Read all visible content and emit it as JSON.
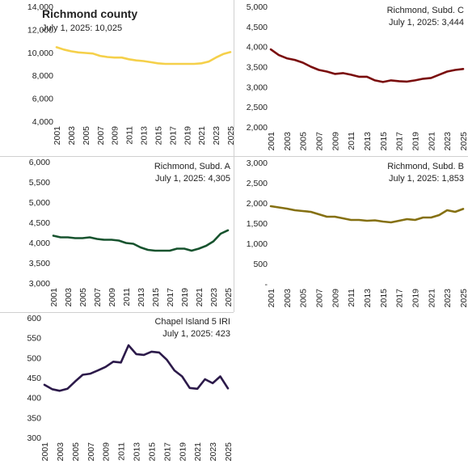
{
  "chart_data": [
    {
      "type": "line",
      "title": "Richmond county",
      "subtitle": "July 1, 2025: 10,025",
      "color": "#f5d04a",
      "ylim": [
        4000,
        14000
      ],
      "yticks": [
        "4,000",
        "6,000",
        "8,000",
        "10,000",
        "12,000",
        "14,000"
      ],
      "xticks": [
        "2001",
        "2003",
        "2005",
        "2007",
        "2009",
        "2011",
        "2013",
        "2015",
        "2017",
        "2019",
        "2021",
        "2023",
        "2025"
      ],
      "x": [
        2001,
        2002,
        2003,
        2004,
        2005,
        2006,
        2007,
        2008,
        2009,
        2010,
        2011,
        2012,
        2013,
        2014,
        2015,
        2016,
        2017,
        2018,
        2019,
        2020,
        2021,
        2022,
        2023,
        2024,
        2025
      ],
      "values": [
        10450,
        10250,
        10100,
        10000,
        9950,
        9900,
        9700,
        9600,
        9550,
        9550,
        9400,
        9300,
        9250,
        9150,
        9050,
        9000,
        9000,
        9000,
        9000,
        9000,
        9050,
        9200,
        9550,
        9850,
        10025
      ]
    },
    {
      "type": "line",
      "title": "Richmond, Subd. C",
      "subtitle": "July 1, 2025: 3,444",
      "color": "#7a0c0c",
      "ylim": [
        2000,
        5000
      ],
      "yticks": [
        "2,000",
        "2,500",
        "3,000",
        "3,500",
        "4,000",
        "4,500",
        "5,000"
      ],
      "xticks": [
        "2001",
        "2003",
        "2005",
        "2007",
        "2009",
        "2011",
        "2013",
        "2015",
        "2017",
        "2019",
        "2021",
        "2023",
        "2025"
      ],
      "x": [
        2001,
        2002,
        2003,
        2004,
        2005,
        2006,
        2007,
        2008,
        2009,
        2010,
        2011,
        2012,
        2013,
        2014,
        2015,
        2016,
        2017,
        2018,
        2019,
        2020,
        2021,
        2022,
        2023,
        2024,
        2025
      ],
      "values": [
        3930,
        3790,
        3710,
        3670,
        3600,
        3500,
        3420,
        3380,
        3320,
        3340,
        3300,
        3250,
        3250,
        3160,
        3120,
        3160,
        3140,
        3130,
        3160,
        3200,
        3220,
        3300,
        3380,
        3420,
        3444
      ]
    },
    {
      "type": "line",
      "title": "Richmond, Subd. A",
      "subtitle": "July 1, 2025: 4,305",
      "color": "#17532e",
      "ylim": [
        3000,
        6000
      ],
      "yticks": [
        "3,000",
        "3,500",
        "4,000",
        "4,500",
        "5,000",
        "5,500",
        "6,000"
      ],
      "xticks": [
        "2001",
        "2003",
        "2005",
        "2007",
        "2009",
        "2011",
        "2013",
        "2015",
        "2017",
        "2019",
        "2021",
        "2023",
        "2025"
      ],
      "x": [
        2001,
        2002,
        2003,
        2004,
        2005,
        2006,
        2007,
        2008,
        2009,
        2010,
        2011,
        2012,
        2013,
        2014,
        2015,
        2016,
        2017,
        2018,
        2019,
        2020,
        2021,
        2022,
        2023,
        2024,
        2025
      ],
      "values": [
        4170,
        4130,
        4130,
        4110,
        4110,
        4130,
        4090,
        4070,
        4070,
        4050,
        3990,
        3970,
        3880,
        3820,
        3800,
        3800,
        3800,
        3850,
        3850,
        3800,
        3850,
        3920,
        4030,
        4220,
        4305
      ]
    },
    {
      "type": "line",
      "title": "Richmond, Subd. B",
      "subtitle": "July 1, 2025: 1,853",
      "color": "#857012",
      "ylim": [
        0,
        3000
      ],
      "yticks": [
        "-",
        "500",
        "1,000",
        "1,500",
        "2,000",
        "2,500",
        "3,000"
      ],
      "xticks": [
        "2001",
        "2003",
        "2005",
        "2007",
        "2009",
        "2011",
        "2013",
        "2015",
        "2017",
        "2019",
        "2021",
        "2023",
        "2025"
      ],
      "x": [
        2001,
        2002,
        2003,
        2004,
        2005,
        2006,
        2007,
        2008,
        2009,
        2010,
        2011,
        2012,
        2013,
        2014,
        2015,
        2016,
        2017,
        2018,
        2019,
        2020,
        2021,
        2022,
        2023,
        2024,
        2025
      ],
      "values": [
        1920,
        1890,
        1860,
        1820,
        1800,
        1780,
        1720,
        1660,
        1660,
        1620,
        1580,
        1580,
        1560,
        1570,
        1540,
        1520,
        1560,
        1600,
        1580,
        1640,
        1640,
        1700,
        1820,
        1780,
        1853
      ]
    },
    {
      "type": "line",
      "title": "Chapel Island 5  IRI",
      "subtitle": "July 1, 2025: 423",
      "color": "#2c1a4a",
      "ylim": [
        300,
        600
      ],
      "yticks": [
        "300",
        "350",
        "400",
        "450",
        "500",
        "550",
        "600"
      ],
      "xticks": [
        "2001",
        "2003",
        "2005",
        "2007",
        "2009",
        "2011",
        "2013",
        "2015",
        "2017",
        "2019",
        "2021",
        "2023",
        "2025"
      ],
      "x": [
        2001,
        2002,
        2003,
        2004,
        2005,
        2006,
        2007,
        2008,
        2009,
        2010,
        2011,
        2012,
        2013,
        2014,
        2015,
        2016,
        2017,
        2018,
        2019,
        2020,
        2021,
        2022,
        2023,
        2024,
        2025
      ],
      "values": [
        432,
        421,
        417,
        422,
        440,
        457,
        460,
        468,
        477,
        490,
        488,
        531,
        509,
        507,
        515,
        513,
        495,
        468,
        453,
        424,
        422,
        446,
        436,
        453,
        423
      ]
    }
  ]
}
